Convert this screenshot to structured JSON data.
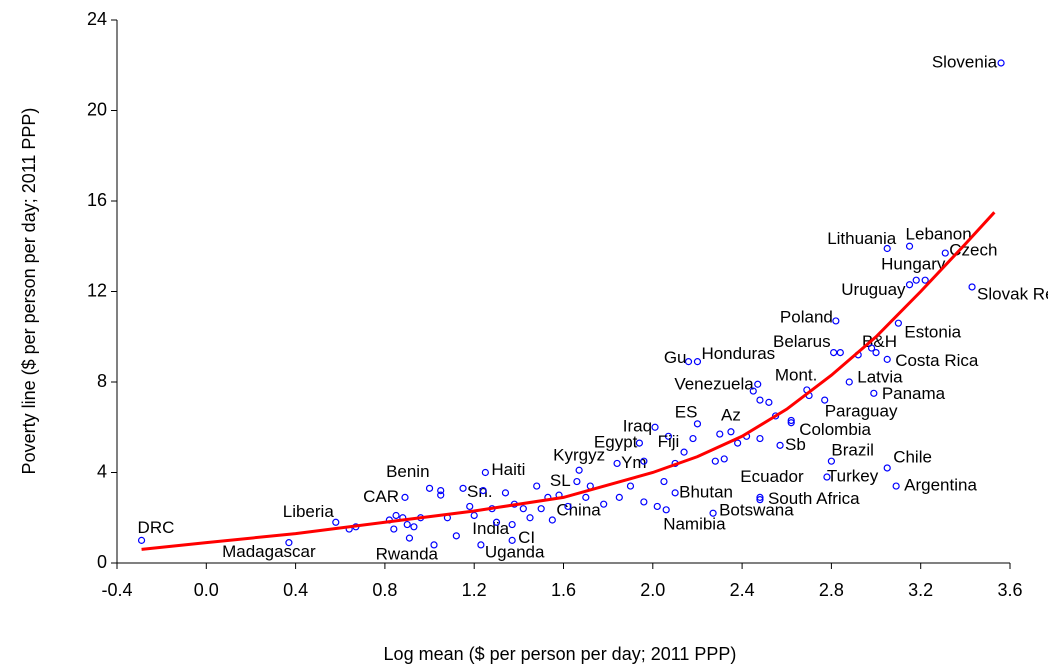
{
  "chart_data": {
    "type": "scatter",
    "x_label": "Log mean ($ per person per day; 2011 PPP)",
    "y_label": "Poverty line ($ per person per day; 2011 PPP)",
    "xlim": [
      -0.4,
      3.6
    ],
    "ylim": [
      0,
      24
    ],
    "xticks": [
      -0.4,
      {
        "value": 0,
        "label": "0.0"
      },
      0.4,
      0.8,
      1.2,
      1.6,
      {
        "value": 2,
        "label": "2.0"
      },
      2.4,
      2.8,
      3.2,
      3.6
    ],
    "yticks": [
      0,
      4,
      8,
      12,
      16,
      20,
      24
    ],
    "series": [
      {
        "type": "scatter",
        "color": "#0000ff",
        "x": [
          -0.29,
          0.37,
          0.58,
          1.02,
          0.89,
          1.0,
          1.15,
          1.25,
          1.37,
          1.37,
          1.23,
          1.55,
          1.53,
          1.67,
          1.94,
          1.84,
          2.01,
          2.07,
          2.2,
          2.35,
          2.16,
          2.2,
          2.47,
          2.69,
          2.81,
          2.82,
          3.0,
          3.1,
          3.05,
          2.88,
          2.99,
          2.77,
          2.62,
          2.57,
          2.8,
          3.05,
          2.78,
          2.48,
          2.48,
          3.09,
          2.1,
          2.27,
          2.06,
          3.05,
          3.15,
          3.31,
          3.22,
          3.15,
          3.43,
          3.56,
          0.67,
          0.64,
          0.82,
          0.85,
          0.88,
          0.9,
          0.93,
          0.96,
          0.84,
          0.91,
          1.05,
          1.05,
          1.08,
          1.12,
          1.18,
          1.2,
          1.24,
          1.28,
          1.3,
          1.34,
          1.38,
          1.42,
          1.45,
          1.48,
          1.5,
          1.58,
          1.62,
          1.66,
          1.7,
          1.72,
          1.78,
          1.85,
          1.9,
          1.96,
          2.02,
          2.05,
          2.1,
          2.14,
          2.18,
          2.28,
          2.32,
          2.38,
          2.42,
          2.45,
          2.48,
          2.52,
          2.55,
          2.62,
          2.7,
          2.84,
          2.92,
          2.98,
          3.18,
          2.3,
          1.96,
          2.48
        ],
        "values": [
          1.0,
          0.9,
          1.8,
          0.8,
          2.9,
          3.3,
          3.3,
          4.0,
          1.7,
          1.0,
          0.8,
          1.9,
          2.9,
          4.1,
          5.3,
          4.4,
          6.0,
          5.6,
          6.15,
          5.8,
          8.9,
          8.9,
          7.9,
          7.65,
          9.3,
          10.7,
          9.3,
          10.6,
          9.0,
          8.0,
          7.5,
          7.2,
          6.3,
          5.2,
          4.5,
          4.2,
          3.8,
          2.9,
          2.8,
          3.4,
          3.1,
          2.2,
          2.35,
          13.9,
          14.0,
          13.7,
          12.5,
          12.3,
          12.2,
          22.1,
          1.6,
          1.5,
          1.9,
          2.1,
          2.0,
          1.7,
          1.6,
          2.0,
          1.5,
          1.1,
          3.0,
          3.2,
          2.0,
          1.2,
          2.5,
          2.1,
          3.2,
          2.4,
          1.8,
          3.1,
          2.6,
          2.4,
          2.0,
          3.4,
          2.4,
          3.0,
          2.5,
          3.6,
          2.9,
          3.4,
          2.6,
          2.9,
          3.4,
          2.7,
          2.5,
          3.6,
          4.4,
          4.9,
          5.5,
          4.5,
          4.6,
          5.3,
          5.6,
          7.6,
          7.2,
          7.1,
          6.5,
          6.2,
          7.4,
          9.3,
          9.2,
          9.5,
          12.5,
          5.7,
          4.5,
          5.5
        ],
        "labels": [
          "DRC",
          "Madagascar",
          "Liberia",
          "Rwanda",
          "CAR",
          "Benin",
          "Sn.",
          "Haiti",
          "India",
          "CI",
          "Uganda",
          "China",
          "SL",
          "Kyrgyz",
          "Egypt",
          "Ym",
          "Iraq",
          "Fiji",
          "ES",
          "Az",
          "Gu",
          "Honduras",
          "Venezuela",
          "Mont.",
          "Belarus",
          "Poland",
          "B&H",
          "Estonia",
          "Costa Rica",
          "Latvia",
          "Panama",
          "Paraguay",
          "Colombia",
          "Sb",
          "Brazil",
          "Chile",
          "Turkey",
          "Ecuador",
          "South Africa",
          "Argentina",
          "Bhutan",
          "Botswana",
          "Namibia",
          "Lithuania",
          "Lebanon",
          "Czech",
          "Hungary",
          "Uruguay",
          "Slovak Rep.",
          "Slovenia",
          null,
          null,
          null,
          null,
          null,
          null,
          null,
          null,
          null,
          null,
          null,
          null,
          null,
          null,
          null,
          null,
          null,
          null,
          null,
          null,
          null,
          null,
          null,
          null,
          null,
          null,
          null,
          null,
          null,
          null,
          null,
          null,
          null,
          null,
          null,
          null,
          null,
          null,
          null,
          null,
          null,
          null,
          null,
          null,
          null,
          null,
          null,
          null,
          null,
          null,
          null,
          null,
          null,
          null,
          null,
          null
        ]
      },
      {
        "type": "line",
        "color": "#ff0000",
        "x": [
          -0.29,
          0.0,
          0.4,
          0.8,
          1.2,
          1.6,
          2.0,
          2.2,
          2.4,
          2.6,
          2.8,
          3.0,
          3.2,
          3.4,
          3.53
        ],
        "values": [
          0.6,
          0.9,
          1.3,
          1.8,
          2.3,
          2.9,
          4.0,
          4.7,
          5.6,
          6.8,
          8.3,
          10.0,
          12.0,
          14.1,
          15.5
        ]
      }
    ]
  }
}
